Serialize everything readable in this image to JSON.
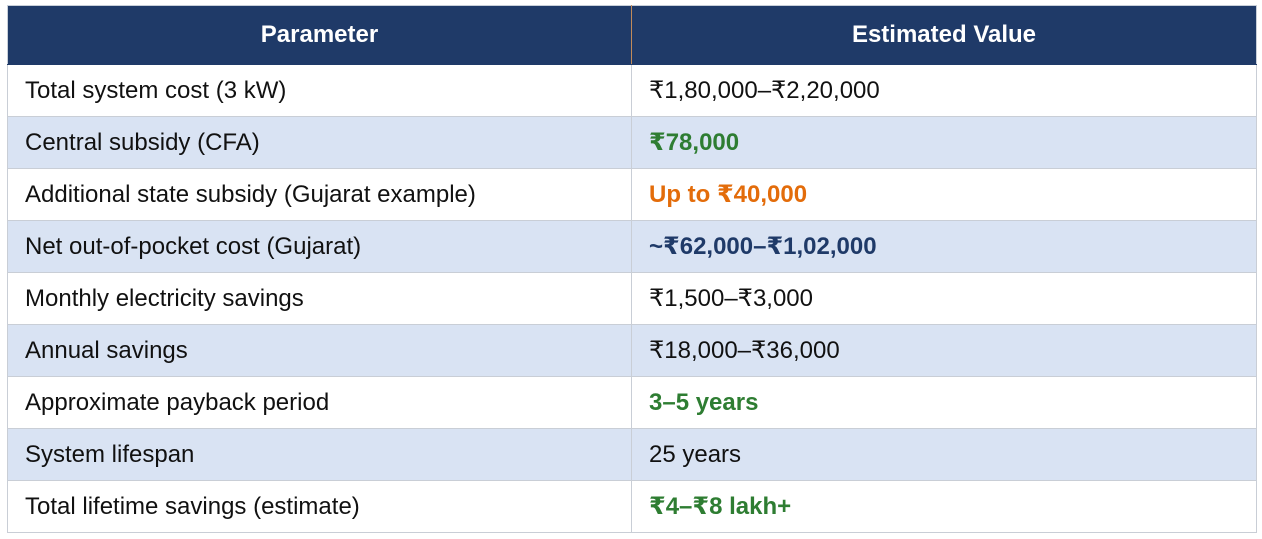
{
  "table": {
    "headers": [
      "Parameter",
      "Estimated Value"
    ],
    "rows": [
      {
        "parameter": "Total system cost (3 kW)",
        "value": "₹1,80,000–₹2,20,000",
        "style": "normal",
        "color": "#111111"
      },
      {
        "parameter": "Central subsidy (CFA)",
        "value": "₹78,000",
        "style": "bold",
        "color": "#2e7d32"
      },
      {
        "parameter": "Additional state subsidy (Gujarat example)",
        "value": "Up to ₹40,000",
        "style": "bold",
        "color": "#e36c0a"
      },
      {
        "parameter": "Net out-of-pocket cost (Gujarat)",
        "value": "~₹62,000–₹1,02,000",
        "style": "bold",
        "color": "#1f3a68"
      },
      {
        "parameter": "Monthly electricity savings",
        "value": "₹1,500–₹3,000",
        "style": "normal",
        "color": "#111111"
      },
      {
        "parameter": "Annual savings",
        "value": "₹18,000–₹36,000",
        "style": "normal",
        "color": "#111111"
      },
      {
        "parameter": "Approximate payback period",
        "value": "3–5 years",
        "style": "bold",
        "color": "#2e7d32"
      },
      {
        "parameter": "System lifespan",
        "value": "25 years",
        "style": "normal",
        "color": "#111111"
      },
      {
        "parameter": "Total lifetime savings (estimate)",
        "value": "₹4–₹8 lakh+",
        "style": "bold",
        "color": "#2e7d32"
      }
    ]
  },
  "colors": {
    "header_bg": "#1f3a68",
    "alt_row_bg": "#d9e3f3",
    "green": "#2e7d32",
    "orange": "#e36c0a",
    "navy": "#1f3a68"
  }
}
